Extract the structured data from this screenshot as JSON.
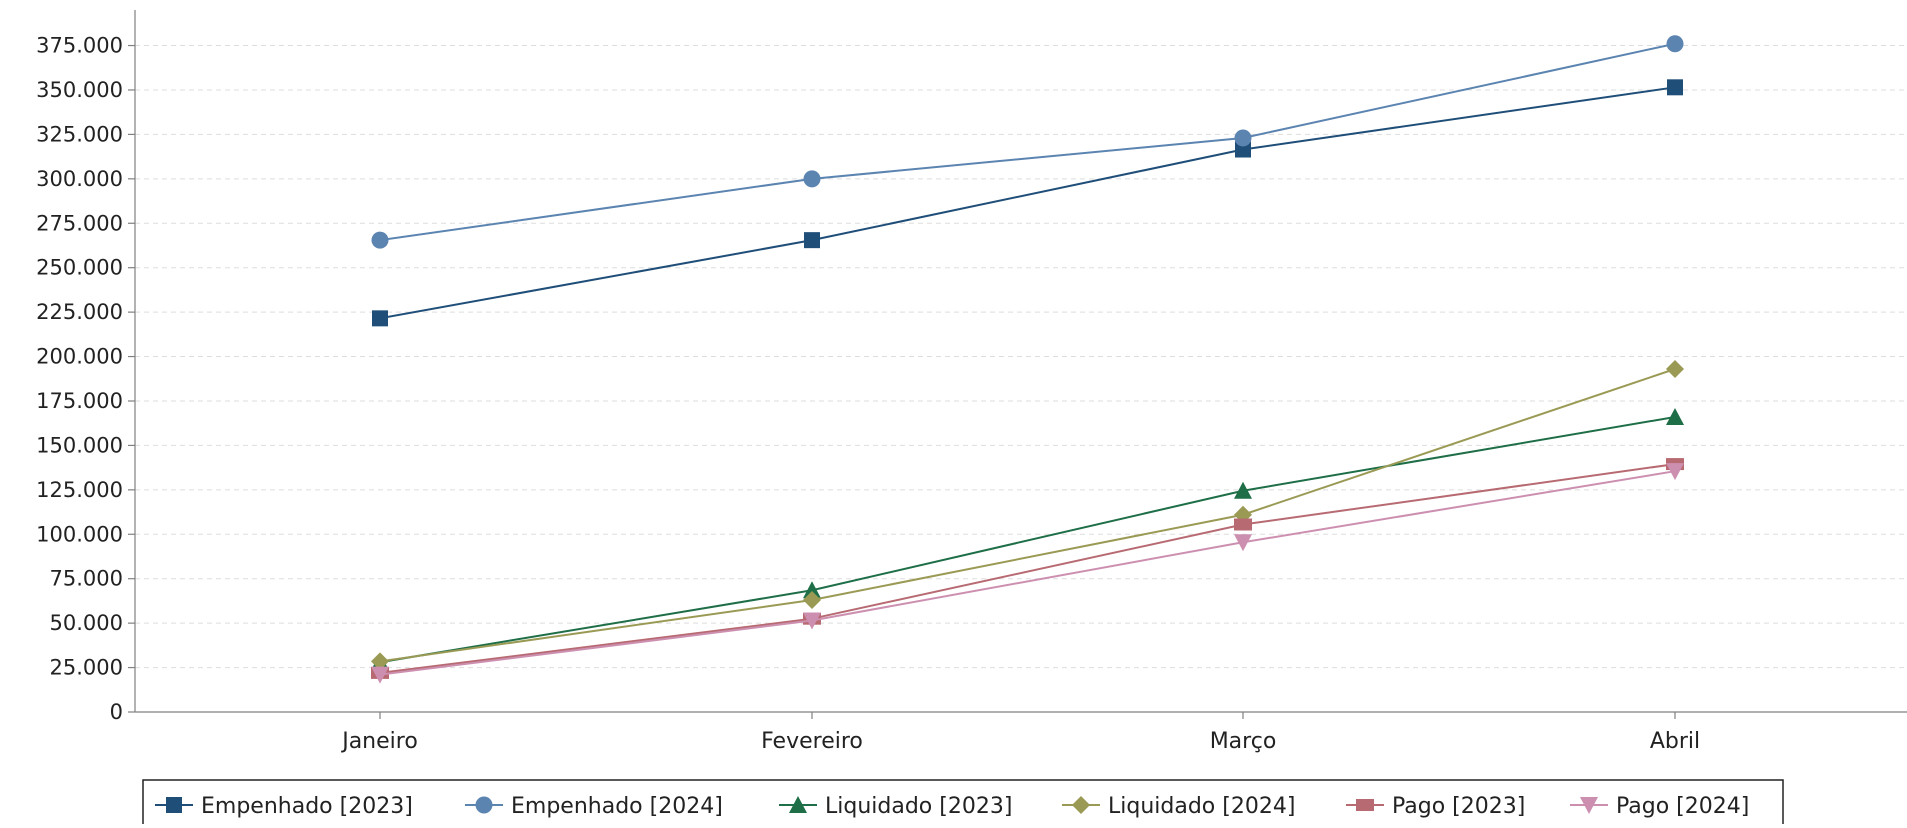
{
  "chart_data": {
    "type": "line",
    "title": "",
    "xlabel": "",
    "ylabel": "",
    "categories": [
      "Janeiro",
      "Fevereiro",
      "Março",
      "Abril"
    ],
    "ylim": [
      0,
      395000
    ],
    "yticks": [
      0,
      25000,
      50000,
      75000,
      100000,
      125000,
      150000,
      175000,
      200000,
      225000,
      250000,
      275000,
      300000,
      325000,
      350000,
      375000
    ],
    "ytick_labels": [
      "0",
      "25.000",
      "50.000",
      "75.000",
      "100.000",
      "125.000",
      "150.000",
      "175.000",
      "200.000",
      "225.000",
      "250.000",
      "275.000",
      "300.000",
      "325.000",
      "350.000",
      "375.000"
    ],
    "grid": "horizontal-dashed",
    "legend_position": "bottom",
    "series": [
      {
        "name": "Empenhado [2023]",
        "values": [
          221500,
          265500,
          316500,
          351500
        ],
        "color": "#1f4e79",
        "marker": "square"
      },
      {
        "name": "Empenhado [2024]",
        "values": [
          265500,
          300000,
          323000,
          376000
        ],
        "color": "#5b84b1",
        "marker": "circle"
      },
      {
        "name": "Liquidado [2023]",
        "values": [
          28000,
          68500,
          124500,
          166000
        ],
        "color": "#1e6e47",
        "marker": "triangle-up"
      },
      {
        "name": "Liquidado [2024]",
        "values": [
          28500,
          63000,
          111000,
          193000
        ],
        "color": "#9a9a55",
        "marker": "diamond"
      },
      {
        "name": "Pago [2023]",
        "values": [
          22000,
          52500,
          105500,
          139500
        ],
        "color": "#b86a72",
        "marker": "rect"
      },
      {
        "name": "Pago [2024]",
        "values": [
          21000,
          51500,
          95500,
          135500
        ],
        "color": "#cc8fb0",
        "marker": "triangle-down"
      }
    ]
  }
}
